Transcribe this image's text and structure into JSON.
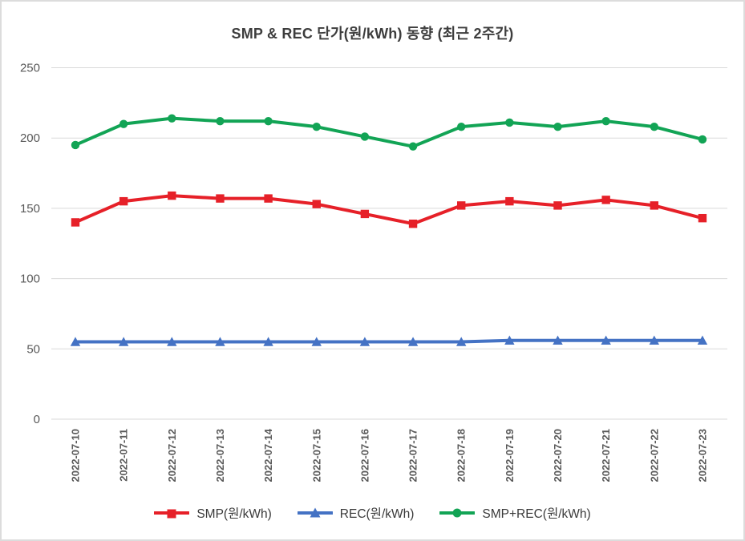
{
  "window": {
    "background": "#ffffff",
    "border_color": "#dcdcdc"
  },
  "chart_data": {
    "type": "line",
    "title": "SMP & REC 단가(원/kWh) 동향 (최근 2주간)",
    "title_color": "#3d3d3d",
    "categories": [
      "2022-07-10",
      "2022-07-11",
      "2022-07-12",
      "2022-07-13",
      "2022-07-14",
      "2022-07-15",
      "2022-07-16",
      "2022-07-17",
      "2022-07-18",
      "2022-07-19",
      "2022-07-20",
      "2022-07-21",
      "2022-07-22",
      "2022-07-23"
    ],
    "series": [
      {
        "name": "SMP(원/kWh)",
        "color": "#e62028",
        "marker": "square",
        "values": [
          140,
          155,
          159,
          157,
          157,
          153,
          146,
          139,
          152,
          155,
          152,
          156,
          152,
          143
        ]
      },
      {
        "name": "REC(원/kWh)",
        "color": "#4472c4",
        "marker": "triangle",
        "values": [
          55,
          55,
          55,
          55,
          55,
          55,
          55,
          55,
          55,
          56,
          56,
          56,
          56,
          56
        ]
      },
      {
        "name": "SMP+REC(원/kWh)",
        "color": "#12a455",
        "marker": "circle",
        "values": [
          195,
          210,
          214,
          212,
          212,
          208,
          201,
          194,
          208,
          211,
          208,
          212,
          208,
          199
        ]
      }
    ],
    "ylim": [
      0,
      250
    ],
    "yticks": [
      0,
      50,
      100,
      150,
      200,
      250
    ],
    "grid": "horizontal",
    "gridline_color": "#d9d9d9",
    "axis_label_color": "#595959",
    "legend_position": "bottom",
    "line_width": 4
  }
}
